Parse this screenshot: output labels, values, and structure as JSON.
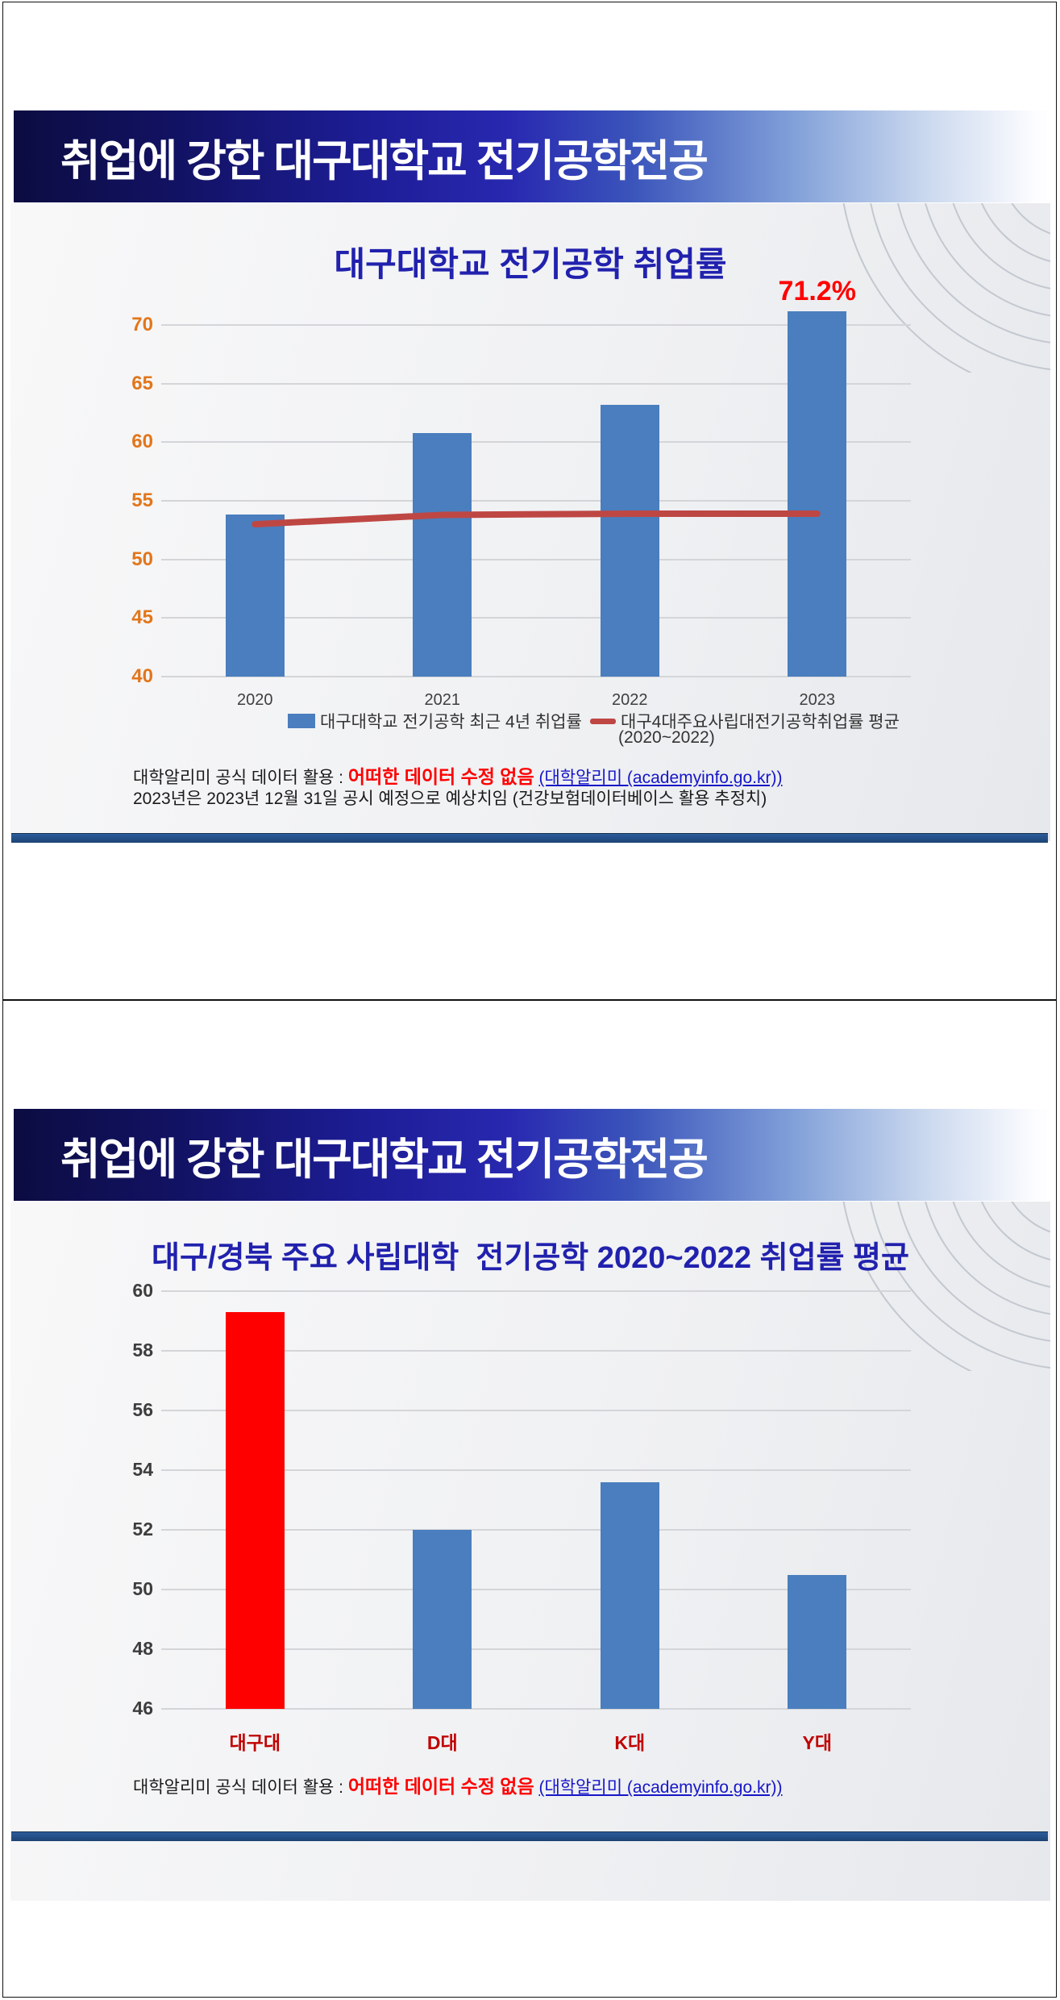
{
  "slides": [
    {
      "banner_title": "취업에 강한 대구대학교 전기공학전공",
      "footer": {
        "prefix": "대학알리미 공식 데이터 활용 : ",
        "red": "어떠한 데이터 수정 없음",
        "link": "(대학알리미 (academyinfo.go.kr))",
        "line2": "2023년은 2023년 12월 31일 공시 예정으로 예상치임 (건강보험데이터베이스 활용 추정치)"
      }
    },
    {
      "banner_title": "취업에 강한 대구대학교 전기공학전공",
      "footer": {
        "prefix": "대학알리미 공식 데이터 활용 : ",
        "red": "어떠한 데이터 수정 없음",
        "link": "(대학알리미 (academyinfo.go.kr))"
      }
    }
  ],
  "chart_data": [
    {
      "type": "bar",
      "title": "대구대학교 전기공학 취업률",
      "categories": [
        "2020",
        "2021",
        "2022",
        "2023"
      ],
      "series": [
        {
          "name": "대구대학교 전기공학 최근 4년 취업률",
          "type": "bar",
          "color": "#4A7EBE",
          "values": [
            53.8,
            60.8,
            63.2,
            71.2
          ]
        },
        {
          "name": "대구4대주요사립대전기공학취업률 평균",
          "period_label": "(2020~2022)",
          "type": "line",
          "color": "#BE4744",
          "values": [
            53.0,
            53.8,
            53.9,
            53.9
          ]
        }
      ],
      "ylim": [
        40,
        70
      ],
      "ytick_step": 5,
      "ytick_color": "#E2761B",
      "xtick_color": "#3f3f3f",
      "grid": true,
      "legend_position": "bottom",
      "annotation": {
        "text": "71.2%",
        "category": "2023",
        "color": "#FF0000"
      }
    },
    {
      "type": "bar",
      "title": "대구/경북 주요 사립대학  전기공학 2020~2022 취업률 평균",
      "categories": [
        "대구대",
        "D대",
        "K대",
        "Y대"
      ],
      "values": [
        59.3,
        52.0,
        53.6,
        50.5
      ],
      "bar_colors": [
        "#FF0000",
        "#4A7EBE",
        "#4A7EBE",
        "#4A7EBE"
      ],
      "ylim": [
        46,
        60
      ],
      "ytick_step": 2,
      "ytick_color": "#3D3D3D",
      "xtick_color": "#C00000",
      "grid": true,
      "legend_position": "none"
    }
  ]
}
